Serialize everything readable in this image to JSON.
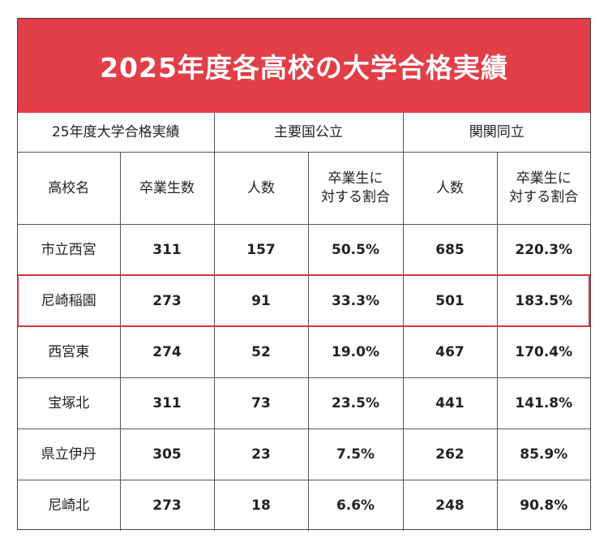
{
  "title": "2025年度各高校の大学合格実績",
  "colors": {
    "title_bg": "#e23e48",
    "highlight_border": "#e0303a"
  },
  "table": {
    "group_headers": [
      "25年度大学合格実績",
      "主要国公立",
      "関関同立"
    ],
    "column_headers": [
      "高校名",
      "卒業生数",
      "人数",
      "卒業生に\n対する割合",
      "人数",
      "卒業生に\n対する割合"
    ],
    "rows": [
      {
        "school": "市立西宮",
        "graduates": "311",
        "national_count": "157",
        "national_ratio": "50.5%",
        "kankan_count": "685",
        "kankan_ratio": "220.3%"
      },
      {
        "school": "尼崎稲園",
        "graduates": "273",
        "national_count": "91",
        "national_ratio": "33.3%",
        "kankan_count": "501",
        "kankan_ratio": "183.5%"
      },
      {
        "school": "西宮東",
        "graduates": "274",
        "national_count": "52",
        "national_ratio": "19.0%",
        "kankan_count": "467",
        "kankan_ratio": "170.4%"
      },
      {
        "school": "宝塚北",
        "graduates": "311",
        "national_count": "73",
        "national_ratio": "23.5%",
        "kankan_count": "441",
        "kankan_ratio": "141.8%"
      },
      {
        "school": "県立伊丹",
        "graduates": "305",
        "national_count": "23",
        "national_ratio": "7.5%",
        "kankan_count": "262",
        "kankan_ratio": "85.9%"
      },
      {
        "school": "尼崎北",
        "graduates": "273",
        "national_count": "18",
        "national_ratio": "6.6%",
        "kankan_count": "248",
        "kankan_ratio": "90.8%"
      }
    ],
    "highlighted_row": 1
  }
}
